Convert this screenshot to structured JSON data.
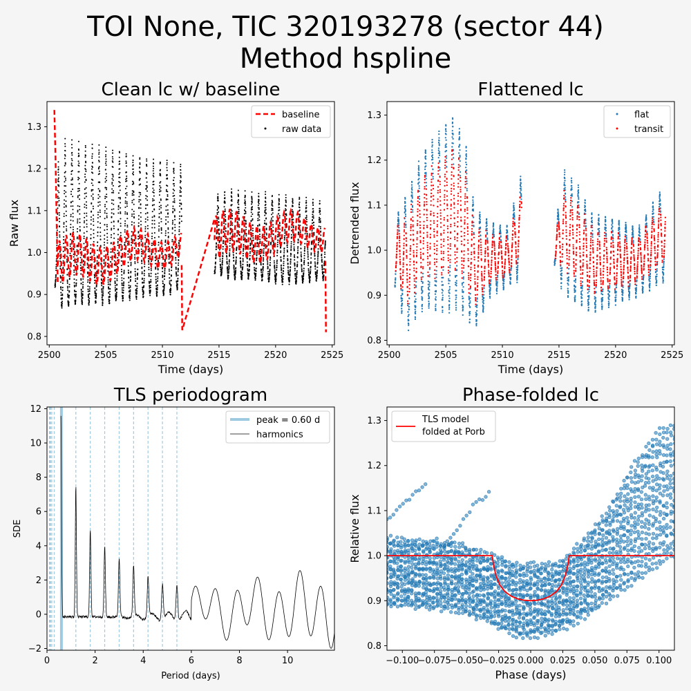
{
  "figure": {
    "title_line1": "TOI None, TIC 320193278 (sector 44)",
    "title_line2": "Method hspline",
    "background": "#f5f5f5"
  },
  "colors": {
    "baseline": "#ff0000",
    "raw": "#000000",
    "flat": "#1f77b4",
    "transit": "#ff0000",
    "tls_peak": "#9ecae1",
    "harmonic": "#000000",
    "model": "#ff0000"
  },
  "chart_data": [
    {
      "type": "scatter",
      "title": "Clean lc w/ baseline",
      "xlabel": "Time (days)",
      "ylabel": "Raw flux",
      "xlim": [
        2499.8,
        2525.2
      ],
      "ylim": [
        0.78,
        1.36
      ],
      "xticks": [
        2500,
        2505,
        2510,
        2515,
        2520,
        2525
      ],
      "yticks": [
        0.8,
        0.9,
        1.0,
        1.1,
        1.2,
        1.3
      ],
      "legend_position": "top-right",
      "legend": [
        "baseline",
        "raw data"
      ],
      "segments": [
        [
          2500.5,
          2511.7
        ],
        [
          2514.6,
          2524.4
        ]
      ],
      "oscillation_period_days": 0.6,
      "raw_data_envelope": {
        "times": [
          2500.5,
          2501,
          2503,
          2505,
          2507,
          2509,
          2510.5,
          2511.7,
          2514.6,
          2516,
          2518,
          2520,
          2522,
          2524.4
        ],
        "upper": [
          1.13,
          1.27,
          1.26,
          1.25,
          1.24,
          1.22,
          1.22,
          1.21,
          1.14,
          1.15,
          1.14,
          1.14,
          1.13,
          1.12
        ],
        "lower": [
          0.92,
          0.87,
          0.88,
          0.88,
          0.89,
          0.9,
          0.9,
          0.92,
          0.95,
          0.94,
          0.94,
          0.93,
          0.93,
          0.94
        ]
      },
      "baseline_series": {
        "name": "baseline",
        "x": [
          2500.45,
          2500.55,
          2500.75,
          2511.7,
          2511.75,
          2514.6,
          2524.4,
          2524.45
        ],
        "y": [
          1.34,
          1.23,
          0.93,
          0.95,
          0.815,
          1.08,
          0.94,
          0.81
        ]
      }
    },
    {
      "type": "scatter",
      "title": "Flattened lc",
      "xlabel": "Time (days)",
      "ylabel": "Detrended flux",
      "xlim": [
        2499.8,
        2525.2
      ],
      "ylim": [
        0.79,
        1.33
      ],
      "xticks": [
        2500,
        2505,
        2510,
        2515,
        2520,
        2525
      ],
      "yticks": [
        0.8,
        0.9,
        1.0,
        1.1,
        1.2,
        1.3
      ],
      "legend_position": "top-right",
      "legend": [
        "flat",
        "transit"
      ],
      "segments": [
        [
          2500.5,
          2511.7
        ],
        [
          2514.6,
          2524.4
        ]
      ],
      "envelope": {
        "times": [
          2500.5,
          2501.5,
          2503,
          2505,
          2505.8,
          2506.8,
          2507.5,
          2509,
          2510.5,
          2511.7,
          2514.6,
          2515.3,
          2516.5,
          2518,
          2520,
          2522,
          2524.4
        ],
        "upper": [
          1.07,
          1.12,
          1.22,
          1.28,
          1.3,
          1.23,
          1.1,
          1.06,
          1.05,
          1.17,
          1.02,
          1.18,
          1.15,
          1.08,
          1.07,
          1.05,
          1.15
        ],
        "lower": [
          0.92,
          0.82,
          0.87,
          0.86,
          0.87,
          0.85,
          0.82,
          0.9,
          0.92,
          0.94,
          0.97,
          0.91,
          0.88,
          0.86,
          0.88,
          0.9,
          0.93
        ]
      }
    },
    {
      "type": "line",
      "title": "TLS periodogram",
      "xlabel": "Period (days)",
      "ylabel": "SDE",
      "xlim": [
        0,
        11.95
      ],
      "ylim": [
        -2.1,
        12.1
      ],
      "xticks": [
        0,
        2,
        4,
        6,
        8,
        10
      ],
      "yticks": [
        -2,
        0,
        2,
        4,
        6,
        8,
        10,
        12
      ],
      "legend_position": "top-right",
      "legend": [
        "peak = 0.60 d",
        "harmonics"
      ],
      "peak_period": 0.6,
      "harmonic_lines": [
        0.1,
        0.12,
        0.15,
        0.2,
        0.3,
        1.2,
        1.8,
        2.4,
        3.0,
        3.6,
        4.2,
        4.8,
        5.4
      ],
      "peaks": [
        {
          "x": 0.58,
          "y": 11.5
        },
        {
          "x": 1.2,
          "y": 7.3
        },
        {
          "x": 1.8,
          "y": 4.85
        },
        {
          "x": 2.4,
          "y": 3.85
        },
        {
          "x": 3.0,
          "y": 3.05
        },
        {
          "x": 3.6,
          "y": 2.55
        },
        {
          "x": 4.2,
          "y": 2.0
        },
        {
          "x": 4.8,
          "y": 1.75
        },
        {
          "x": 5.4,
          "y": 1.85
        }
      ]
    },
    {
      "type": "scatter",
      "title": "Phase-folded lc",
      "xlabel": "Phase (days)",
      "ylabel": "Relative flux",
      "xlim": [
        -0.112,
        0.112
      ],
      "ylim": [
        0.79,
        1.33
      ],
      "xticks": [
        -0.1,
        -0.075,
        -0.05,
        -0.025,
        0.0,
        0.025,
        0.05,
        0.075,
        0.1
      ],
      "xtick_labels": [
        "−0.100",
        "−0.075",
        "−0.050",
        "−0.025",
        "0.000",
        "0.025",
        "0.050",
        "0.075",
        "0.100"
      ],
      "yticks": [
        0.8,
        0.9,
        1.0,
        1.1,
        1.2,
        1.3
      ],
      "legend_position": "top-left",
      "legend": [
        "TLS model",
        "folded at Porb"
      ],
      "model": {
        "name": "TLS model folded at Porb",
        "x": [
          -0.112,
          -0.03,
          -0.029,
          -0.027,
          -0.024,
          -0.02,
          -0.015,
          -0.01,
          -0.005,
          0.0,
          0.005,
          0.01,
          0.015,
          0.02,
          0.024,
          0.027,
          0.029,
          0.03,
          0.112
        ],
        "y": [
          1.0,
          1.0,
          0.98,
          0.955,
          0.935,
          0.92,
          0.91,
          0.904,
          0.901,
          0.9,
          0.901,
          0.904,
          0.91,
          0.92,
          0.935,
          0.955,
          0.98,
          1.0,
          1.0
        ]
      },
      "data_envelope": {
        "x": [
          -0.112,
          -0.06,
          -0.03,
          -0.01,
          0.0,
          0.02,
          0.04,
          0.06,
          0.08,
          0.1,
          0.112
        ],
        "upper": [
          1.04,
          1.03,
          1.0,
          0.98,
          0.98,
          0.98,
          1.03,
          1.1,
          1.2,
          1.28,
          1.29
        ],
        "lower": [
          0.89,
          0.88,
          0.85,
          0.82,
          0.82,
          0.83,
          0.86,
          0.9,
          0.94,
          0.98,
          1.0
        ]
      },
      "outlier_arcs": [
        {
          "x": [
            -0.112,
            -0.09,
            -0.08
          ],
          "y": [
            1.08,
            1.14,
            1.16
          ]
        },
        {
          "x": [
            -0.07,
            -0.045,
            -0.032
          ],
          "y": [
            1.01,
            1.11,
            1.14
          ]
        }
      ]
    }
  ]
}
